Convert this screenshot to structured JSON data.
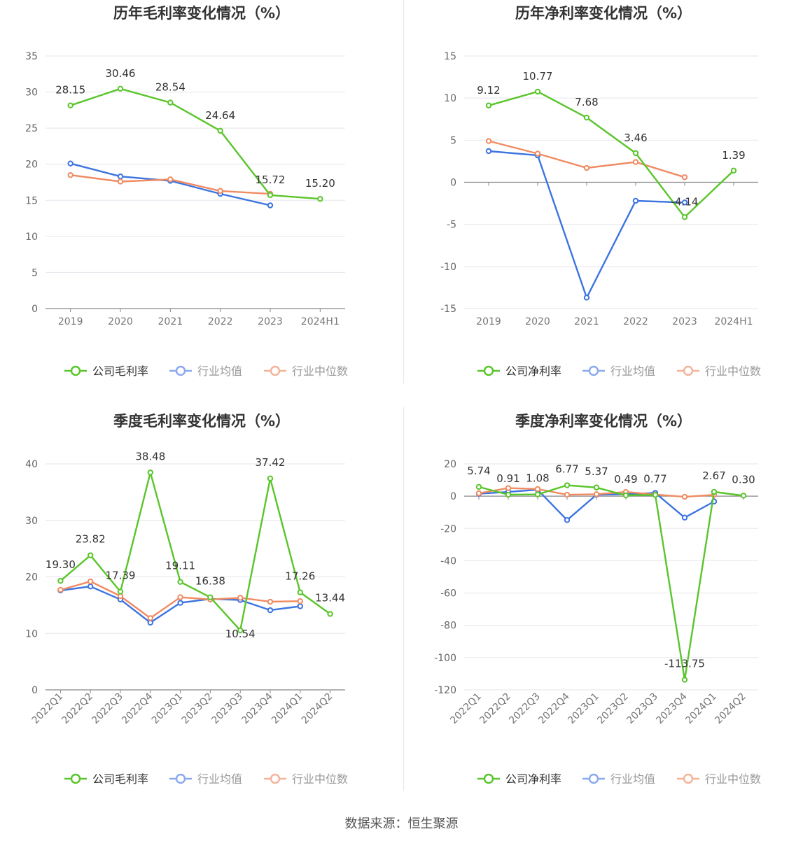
{
  "source_text": "数据来源：恒生聚源",
  "colors": {
    "company": "#5ac52b",
    "industry_avg": "#3d74e0",
    "industry_median": "#f08b62"
  },
  "chart_data": [
    {
      "type": "line",
      "title": "历年毛利率变化情况（%）",
      "categories": [
        "2019",
        "2020",
        "2021",
        "2022",
        "2023",
        "2024H1"
      ],
      "ylim": [
        0,
        35
      ],
      "yticks": [
        0,
        5,
        10,
        15,
        20,
        25,
        30,
        35
      ],
      "grid": true,
      "legend_position": "bottom",
      "label_series": 0,
      "series": [
        {
          "name": "公司毛利率",
          "values": [
            28.15,
            30.46,
            28.54,
            24.64,
            15.72,
            15.2
          ],
          "labels": [
            "28.15",
            "30.46",
            "28.54",
            "24.64",
            "15.72",
            "15.20"
          ]
        },
        {
          "name": "行业均值",
          "values": [
            20.1,
            18.3,
            17.7,
            15.9,
            14.3,
            null
          ]
        },
        {
          "name": "行业中位数",
          "values": [
            18.5,
            17.6,
            17.9,
            16.3,
            15.9,
            null
          ]
        }
      ]
    },
    {
      "type": "line",
      "title": "历年净利率变化情况（%）",
      "categories": [
        "2019",
        "2020",
        "2021",
        "2022",
        "2023",
        "2024H1"
      ],
      "ylim": [
        -15,
        15
      ],
      "yticks": [
        -15,
        -10,
        -5,
        0,
        5,
        10,
        15
      ],
      "grid": true,
      "legend_position": "bottom",
      "label_series": 0,
      "series": [
        {
          "name": "公司净利率",
          "values": [
            9.12,
            10.77,
            7.68,
            3.46,
            -4.14,
            1.39
          ],
          "labels": [
            "9.12",
            "10.77",
            "7.68",
            "3.46",
            "-4.14",
            "1.39"
          ]
        },
        {
          "name": "行业均值",
          "values": [
            3.7,
            3.2,
            -13.7,
            -2.2,
            -2.4,
            null
          ]
        },
        {
          "name": "行业中位数",
          "values": [
            4.9,
            3.4,
            1.7,
            2.4,
            0.6,
            null
          ]
        }
      ]
    },
    {
      "type": "line",
      "title": "季度毛利率变化情况（%）",
      "categories": [
        "2022Q1",
        "2022Q2",
        "2022Q3",
        "2022Q4",
        "2023Q1",
        "2023Q2",
        "2023Q3",
        "2023Q4",
        "2024Q1",
        "2024Q2"
      ],
      "ylim": [
        0,
        40
      ],
      "yticks": [
        0,
        10,
        20,
        30,
        40
      ],
      "grid": true,
      "legend_position": "bottom",
      "label_series": 0,
      "series": [
        {
          "name": "公司毛利率",
          "values": [
            19.3,
            23.82,
            17.39,
            38.48,
            19.11,
            16.38,
            10.54,
            37.42,
            17.26,
            13.44
          ],
          "labels": [
            "19.30",
            "23.82",
            "17.39",
            "38.48",
            "19.11",
            "16.38",
            "10.54",
            "37.42",
            "17.26",
            "13.44"
          ]
        },
        {
          "name": "行业均值",
          "values": [
            17.6,
            18.3,
            16.0,
            11.9,
            15.4,
            16.1,
            15.9,
            14.1,
            14.8,
            null
          ]
        },
        {
          "name": "行业中位数",
          "values": [
            17.7,
            19.2,
            16.6,
            12.7,
            16.4,
            16.0,
            16.3,
            15.6,
            15.7,
            null
          ]
        }
      ]
    },
    {
      "type": "line",
      "title": "季度净利率变化情况（%）",
      "categories": [
        "2022Q1",
        "2022Q2",
        "2022Q3",
        "2022Q4",
        "2023Q1",
        "2023Q2",
        "2023Q3",
        "2023Q4",
        "2024Q1",
        "2024Q2"
      ],
      "ylim": [
        -120,
        20
      ],
      "yticks": [
        -120,
        -100,
        -80,
        -60,
        -40,
        -20,
        0,
        20
      ],
      "grid": true,
      "legend_position": "bottom",
      "label_series": 0,
      "series": [
        {
          "name": "公司净利率",
          "values": [
            5.74,
            0.91,
            1.08,
            6.77,
            5.37,
            0.49,
            0.77,
            -113.75,
            2.67,
            0.3
          ],
          "labels": [
            "5.74",
            "0.91",
            "1.08",
            "6.77",
            "5.37",
            "0.49",
            "0.77",
            "-113.75",
            "2.67",
            "0.30"
          ]
        },
        {
          "name": "行业均值",
          "values": [
            1.5,
            2.6,
            4.0,
            -14.8,
            0.9,
            1.2,
            2.0,
            -13.3,
            -3.3,
            null
          ]
        },
        {
          "name": "行业中位数",
          "values": [
            1.8,
            5.0,
            4.4,
            0.9,
            1.2,
            2.6,
            1.0,
            -0.4,
            0.8,
            null
          ]
        }
      ]
    }
  ]
}
